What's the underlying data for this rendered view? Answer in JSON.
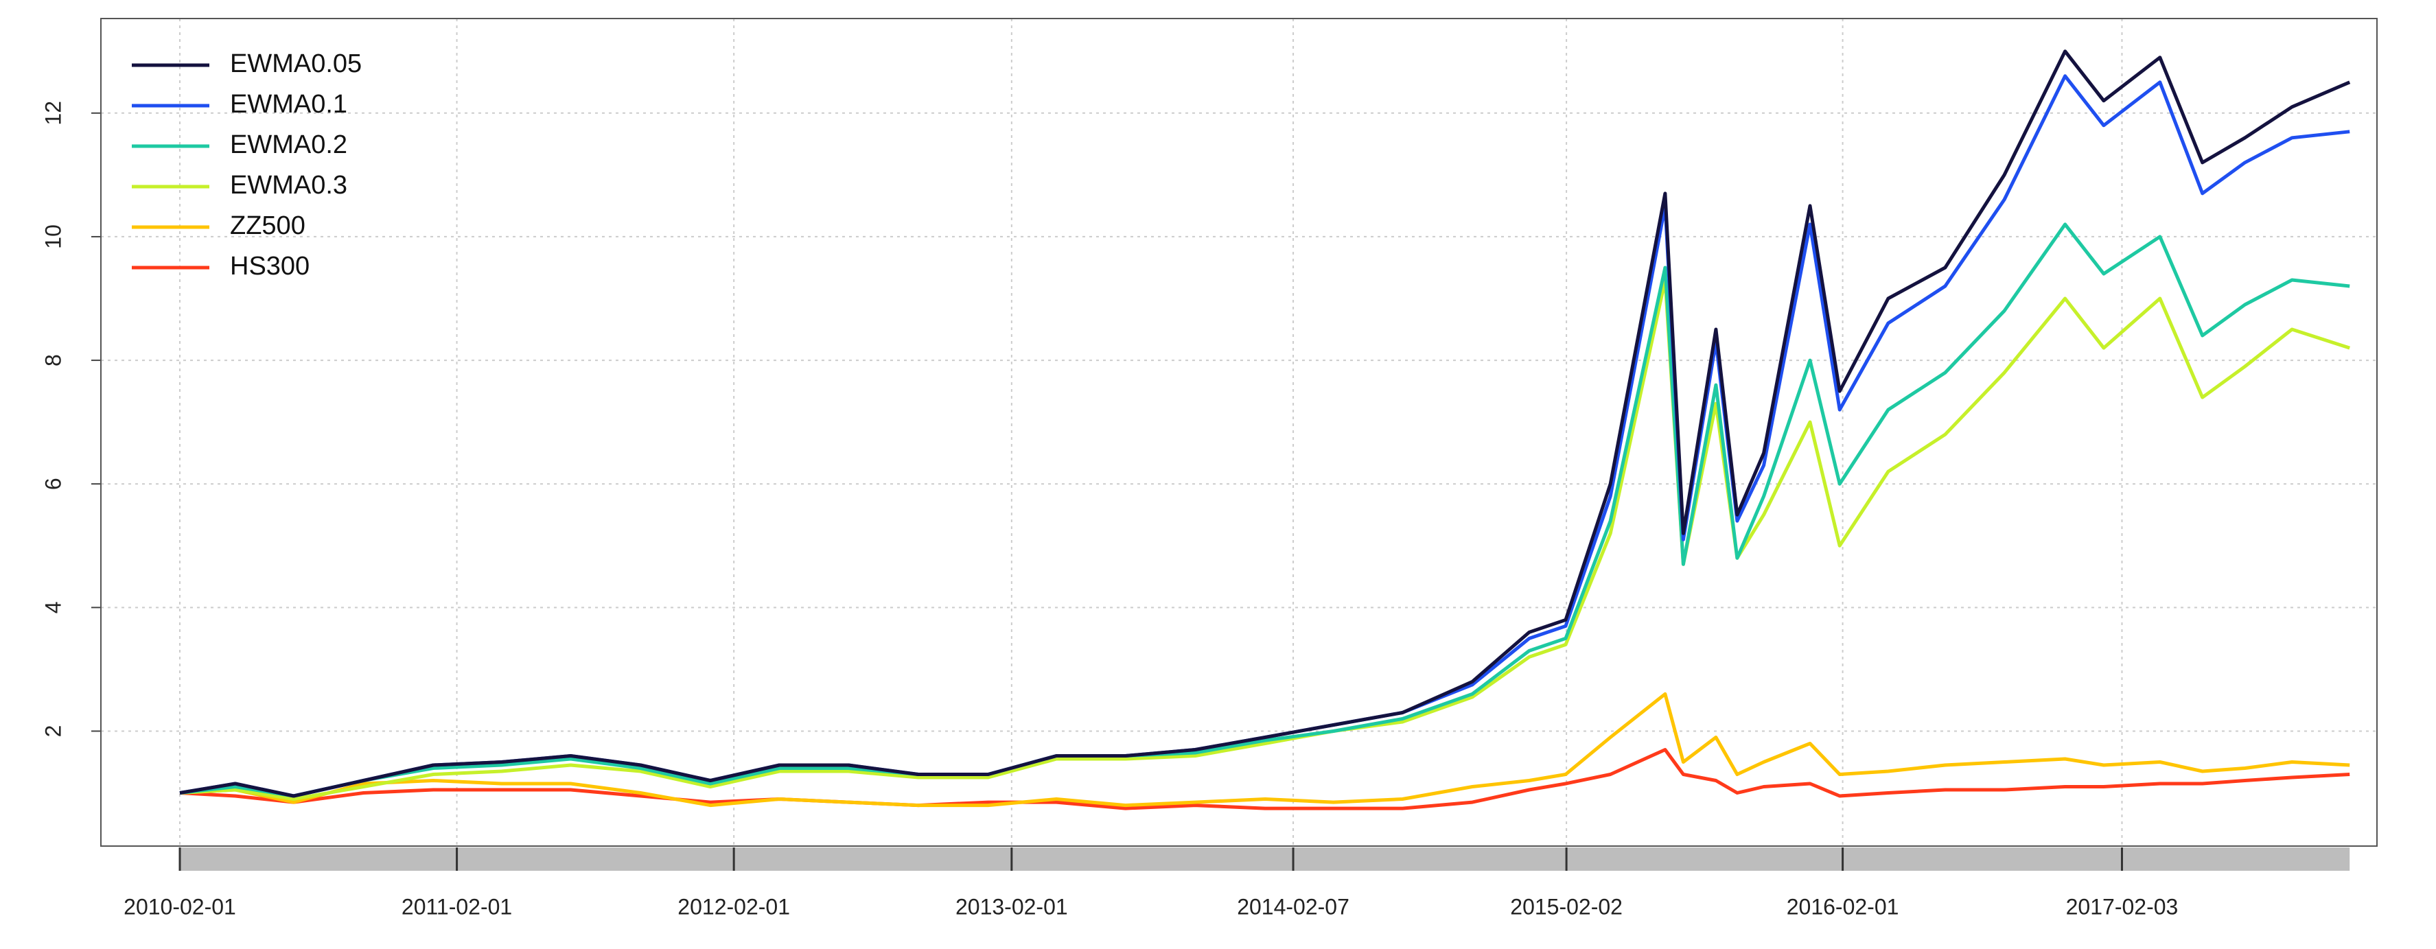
{
  "chart_data": {
    "type": "line",
    "x": [
      "2010-02-01",
      "2010-04-15",
      "2010-07-01",
      "2010-10-01",
      "2011-01-01",
      "2011-04-01",
      "2011-07-01",
      "2011-10-01",
      "2012-01-01",
      "2012-04-01",
      "2012-07-01",
      "2012-10-01",
      "2013-01-01",
      "2013-04-01",
      "2013-07-01",
      "2013-10-01",
      "2014-01-01",
      "2014-04-01",
      "2014-07-01",
      "2014-10-01",
      "2014-12-15",
      "2015-02-01",
      "2015-04-01",
      "2015-06-12",
      "2015-07-06",
      "2015-08-18",
      "2015-09-15",
      "2015-10-20",
      "2015-12-20",
      "2016-01-28",
      "2016-04-01",
      "2016-06-15",
      "2016-09-01",
      "2016-11-20",
      "2017-01-10",
      "2017-03-25",
      "2017-05-20",
      "2017-07-15",
      "2017-09-15",
      "2017-11-30"
    ],
    "series": [
      {
        "name": "EWMA0.05",
        "color": "#14123f",
        "values": [
          1.0,
          1.15,
          0.95,
          1.2,
          1.45,
          1.5,
          1.6,
          1.45,
          1.2,
          1.45,
          1.45,
          1.3,
          1.3,
          1.6,
          1.6,
          1.7,
          1.9,
          2.1,
          2.3,
          2.8,
          3.6,
          3.8,
          6.0,
          10.7,
          5.2,
          8.5,
          5.5,
          6.5,
          10.5,
          7.5,
          9.0,
          9.5,
          11.0,
          13.0,
          12.2,
          12.9,
          11.2,
          11.6,
          12.1,
          12.5
        ]
      },
      {
        "name": "EWMA0.1",
        "color": "#1f4ff0",
        "values": [
          1.0,
          1.15,
          0.95,
          1.2,
          1.45,
          1.5,
          1.6,
          1.45,
          1.2,
          1.45,
          1.45,
          1.3,
          1.3,
          1.6,
          1.6,
          1.7,
          1.9,
          2.1,
          2.3,
          2.75,
          3.5,
          3.7,
          5.8,
          10.5,
          5.1,
          8.3,
          5.4,
          6.3,
          10.2,
          7.2,
          8.6,
          9.2,
          10.6,
          12.6,
          11.8,
          12.5,
          10.7,
          11.2,
          11.6,
          11.7
        ]
      },
      {
        "name": "EWMA0.2",
        "color": "#1ec9a2",
        "values": [
          1.0,
          1.1,
          0.95,
          1.2,
          1.4,
          1.45,
          1.55,
          1.4,
          1.15,
          1.4,
          1.4,
          1.3,
          1.3,
          1.6,
          1.6,
          1.65,
          1.85,
          2.0,
          2.2,
          2.6,
          3.3,
          3.5,
          5.4,
          9.5,
          4.7,
          7.6,
          4.8,
          5.8,
          8.0,
          6.0,
          7.2,
          7.8,
          8.8,
          10.2,
          9.4,
          10.0,
          8.4,
          8.9,
          9.3,
          9.2
        ]
      },
      {
        "name": "EWMA0.3",
        "color": "#c6f02a",
        "values": [
          1.0,
          1.05,
          0.9,
          1.1,
          1.3,
          1.35,
          1.45,
          1.35,
          1.1,
          1.35,
          1.35,
          1.25,
          1.25,
          1.55,
          1.55,
          1.6,
          1.8,
          2.0,
          2.15,
          2.55,
          3.2,
          3.4,
          5.2,
          9.3,
          4.7,
          7.3,
          4.8,
          5.5,
          7.0,
          5.0,
          6.2,
          6.8,
          7.8,
          9.0,
          8.2,
          9.0,
          7.4,
          7.9,
          8.5,
          8.2
        ]
      },
      {
        "name": "ZZ500",
        "color": "#ffc400",
        "values": [
          1.0,
          1.05,
          0.85,
          1.15,
          1.2,
          1.15,
          1.15,
          1.0,
          0.8,
          0.9,
          0.85,
          0.8,
          0.8,
          0.9,
          0.8,
          0.85,
          0.9,
          0.85,
          0.9,
          1.1,
          1.2,
          1.3,
          1.9,
          2.6,
          1.5,
          1.9,
          1.3,
          1.5,
          1.8,
          1.3,
          1.35,
          1.45,
          1.5,
          1.55,
          1.45,
          1.5,
          1.35,
          1.4,
          1.5,
          1.45
        ]
      },
      {
        "name": "HS300",
        "color": "#ff3a1a",
        "values": [
          1.0,
          0.95,
          0.85,
          1.0,
          1.05,
          1.05,
          1.05,
          0.95,
          0.85,
          0.9,
          0.85,
          0.8,
          0.85,
          0.85,
          0.75,
          0.8,
          0.75,
          0.75,
          0.75,
          0.85,
          1.05,
          1.15,
          1.3,
          1.7,
          1.3,
          1.2,
          1.0,
          1.1,
          1.15,
          0.95,
          1.0,
          1.05,
          1.05,
          1.1,
          1.1,
          1.15,
          1.15,
          1.2,
          1.25,
          1.3
        ]
      }
    ],
    "xlim": [
      "2009-10-20",
      "2018-01-05"
    ],
    "xticks": [
      "2010-02-01",
      "2011-02-01",
      "2012-02-01",
      "2013-02-01",
      "2014-02-07",
      "2015-02-02",
      "2016-02-01",
      "2017-02-03"
    ],
    "ylim": [
      0.14,
      13.53
    ],
    "yticks": [
      2,
      4,
      6,
      8,
      10,
      12
    ],
    "grid": true,
    "legend": "top-left"
  }
}
